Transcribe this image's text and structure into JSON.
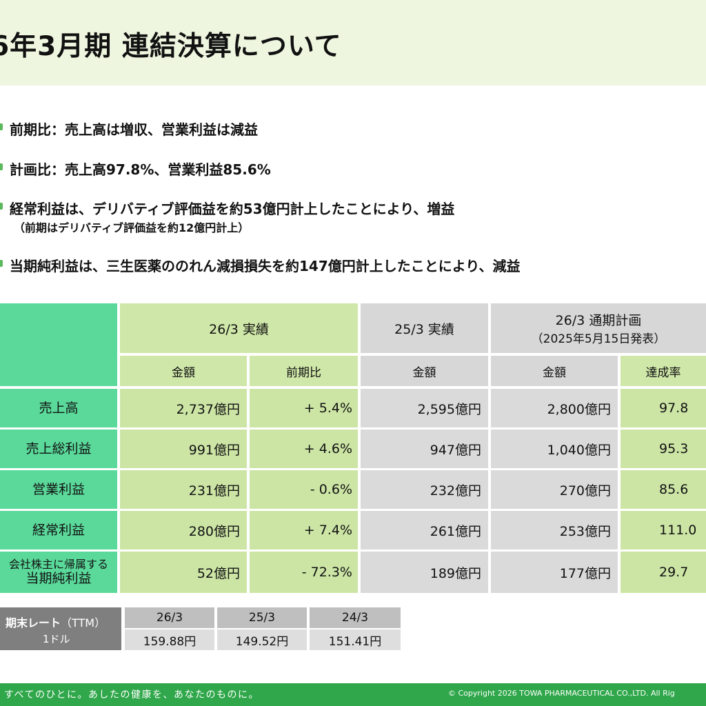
{
  "title": "6年3月期  連結決算について",
  "bullets": [
    {
      "text": "前期比：売上高は増収、営業利益は減益"
    },
    {
      "text": "計画比：売上高97.8%、営業利益85.6%"
    },
    {
      "text": "経常利益は、デリバティブ評価益を約53億円計上したことにより、増益",
      "sub": "（前期はデリバティブ評価益を約12億円計上）"
    },
    {
      "text": "当期純利益は、三生医薬ののれん減損損失を約147億円計上したことにより、減益"
    }
  ],
  "table": {
    "groups": {
      "g1": "26/3 実績",
      "g2": "25/3 実績",
      "g3_line1": "26/3 通期計画",
      "g3_line2": "（2025年5月15日発表）"
    },
    "subheaders": {
      "g1_amount": "金額",
      "g1_yoy": "前期比",
      "g2_amount": "金額",
      "g3_amount": "金額",
      "g3_rate": "達成率"
    },
    "rows": [
      {
        "label": "売上高",
        "label2": "",
        "a": "2,737億円",
        "yoy": "+ 5.4%",
        "prev": "2,595億円",
        "plan": "2,800億円",
        "rate": "97.8"
      },
      {
        "label": "売上総利益",
        "label2": "",
        "a": "991億円",
        "yoy": "+ 4.6%",
        "prev": "947億円",
        "plan": "1,040億円",
        "rate": "95.3"
      },
      {
        "label": "営業利益",
        "label2": "",
        "a": "231億円",
        "yoy": "- 0.6%",
        "prev": "232億円",
        "plan": "270億円",
        "rate": "85.6"
      },
      {
        "label": "経常利益",
        "label2": "",
        "a": "280億円",
        "yoy": "+ 7.4%",
        "prev": "261億円",
        "plan": "253億円",
        "rate": "111.0"
      },
      {
        "label": "会社株主に帰属する",
        "label2": "当期純利益",
        "a": "52億円",
        "yoy": "- 72.3%",
        "prev": "189億円",
        "plan": "177億円",
        "rate": "29.7"
      }
    ]
  },
  "rates": {
    "label_bold": "期末レート",
    "label_rest": "（TTM）",
    "label_unit": "1ドル",
    "headers": [
      "26/3",
      "25/3",
      "24/3"
    ],
    "values": [
      "159.88円",
      "149.52円",
      "151.41円"
    ]
  },
  "footer": {
    "slogan": "すべてのひとに。あしたの健康を、あなたのものに。",
    "copyright": "© Copyright    2026   TOWA PHARMACEUTICAL CO.,LTD.   All Rig"
  }
}
